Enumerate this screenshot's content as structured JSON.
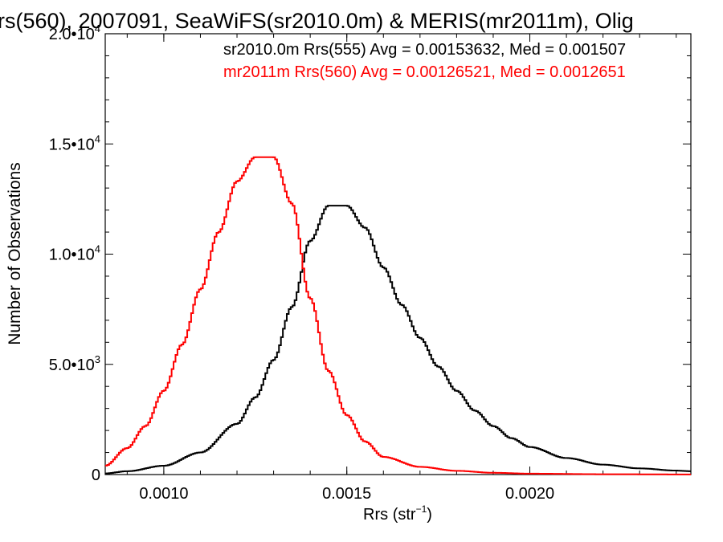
{
  "chart_data": {
    "type": "line",
    "title": "rs(560), 2007091, SeaWiFS(sr2010.0m) & MERIS(mr2011m), Olig",
    "xlabel": "Rrs (str",
    "xlabel_exp": "−1",
    "xlabel_close": ")",
    "ylabel": "Number of Observations",
    "xlim": [
      0.00084,
      0.00244
    ],
    "ylim": [
      0,
      20000
    ],
    "x_ticks": [
      {
        "value": 0.001,
        "label": "0.0010"
      },
      {
        "value": 0.0015,
        "label": "0.0015"
      },
      {
        "value": 0.002,
        "label": "0.0020"
      }
    ],
    "y_ticks": [
      {
        "value": 0,
        "base": "0",
        "exp": ""
      },
      {
        "value": 5000,
        "base": "5.0•10",
        "exp": "3"
      },
      {
        "value": 10000,
        "base": "1.0•10",
        "exp": "4"
      },
      {
        "value": 15000,
        "base": "1.5•10",
        "exp": "4"
      },
      {
        "value": 20000,
        "base": "2.0•10",
        "exp": "4"
      }
    ],
    "grid": false,
    "style": "histogram-step",
    "series": [
      {
        "name": "sr2010.0m Rrs(555) Avg = 0.00153632, Med = 0.001507",
        "color": "#000000",
        "points": [
          [
            0.00084,
            50
          ],
          [
            0.0009,
            150
          ],
          [
            0.001,
            400
          ],
          [
            0.0011,
            1000
          ],
          [
            0.0012,
            2300
          ],
          [
            0.00125,
            3500
          ],
          [
            0.0013,
            5200
          ],
          [
            0.00135,
            7600
          ],
          [
            0.0014,
            10600
          ],
          [
            0.00145,
            12200
          ],
          [
            0.0015,
            12200
          ],
          [
            0.00155,
            11200
          ],
          [
            0.0016,
            9400
          ],
          [
            0.00165,
            7700
          ],
          [
            0.0017,
            6200
          ],
          [
            0.00175,
            4900
          ],
          [
            0.0018,
            3800
          ],
          [
            0.00185,
            2900
          ],
          [
            0.0019,
            2200
          ],
          [
            0.00195,
            1650
          ],
          [
            0.002,
            1250
          ],
          [
            0.0021,
            750
          ],
          [
            0.0022,
            450
          ],
          [
            0.0023,
            280
          ],
          [
            0.0024,
            180
          ],
          [
            0.00244,
            150
          ]
        ]
      },
      {
        "name": "mr2011m Rrs(560) Avg = 0.00126521, Med = 0.0012651",
        "color": "#ff0000",
        "points": [
          [
            0.00084,
            400
          ],
          [
            0.0009,
            1200
          ],
          [
            0.00095,
            2200
          ],
          [
            0.001,
            3800
          ],
          [
            0.00105,
            5900
          ],
          [
            0.0011,
            8400
          ],
          [
            0.00115,
            11000
          ],
          [
            0.0012,
            13300
          ],
          [
            0.00125,
            14400
          ],
          [
            0.0013,
            14400
          ],
          [
            0.00135,
            12300
          ],
          [
            0.0014,
            8000
          ],
          [
            0.00145,
            4700
          ],
          [
            0.0015,
            2700
          ],
          [
            0.00155,
            1500
          ],
          [
            0.0016,
            800
          ],
          [
            0.0017,
            350
          ],
          [
            0.0018,
            170
          ],
          [
            0.0019,
            80
          ],
          [
            0.002,
            40
          ],
          [
            0.0022,
            15
          ],
          [
            0.00244,
            5
          ]
        ]
      }
    ]
  }
}
